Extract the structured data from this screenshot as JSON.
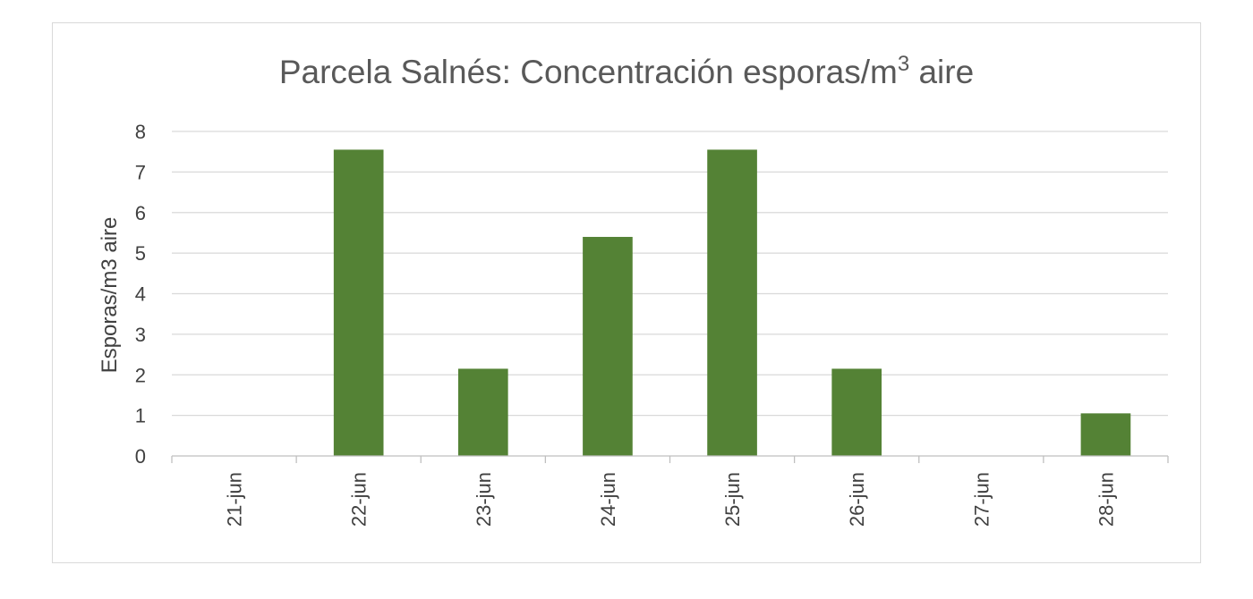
{
  "chart_data": {
    "type": "bar",
    "title": "Parcela Salnés: Concentración esporas/m",
    "title_superscript": "3",
    "title_suffix": " aire",
    "xlabel": "",
    "ylabel": "Esporas/m3 aire",
    "categories": [
      "21-jun",
      "22-jun",
      "23-jun",
      "24-jun",
      "25-jun",
      "26-jun",
      "27-jun",
      "28-jun"
    ],
    "values": [
      0,
      7.55,
      2.15,
      5.4,
      7.55,
      2.15,
      0,
      1.05
    ],
    "ylim": [
      0,
      8
    ],
    "yticks": [
      0,
      1,
      2,
      3,
      4,
      5,
      6,
      7,
      8
    ],
    "grid": true,
    "legend": "none",
    "colors": {
      "bar": "#548235",
      "grid": "#d9d9d9",
      "axis": "#bfbfbf"
    }
  }
}
